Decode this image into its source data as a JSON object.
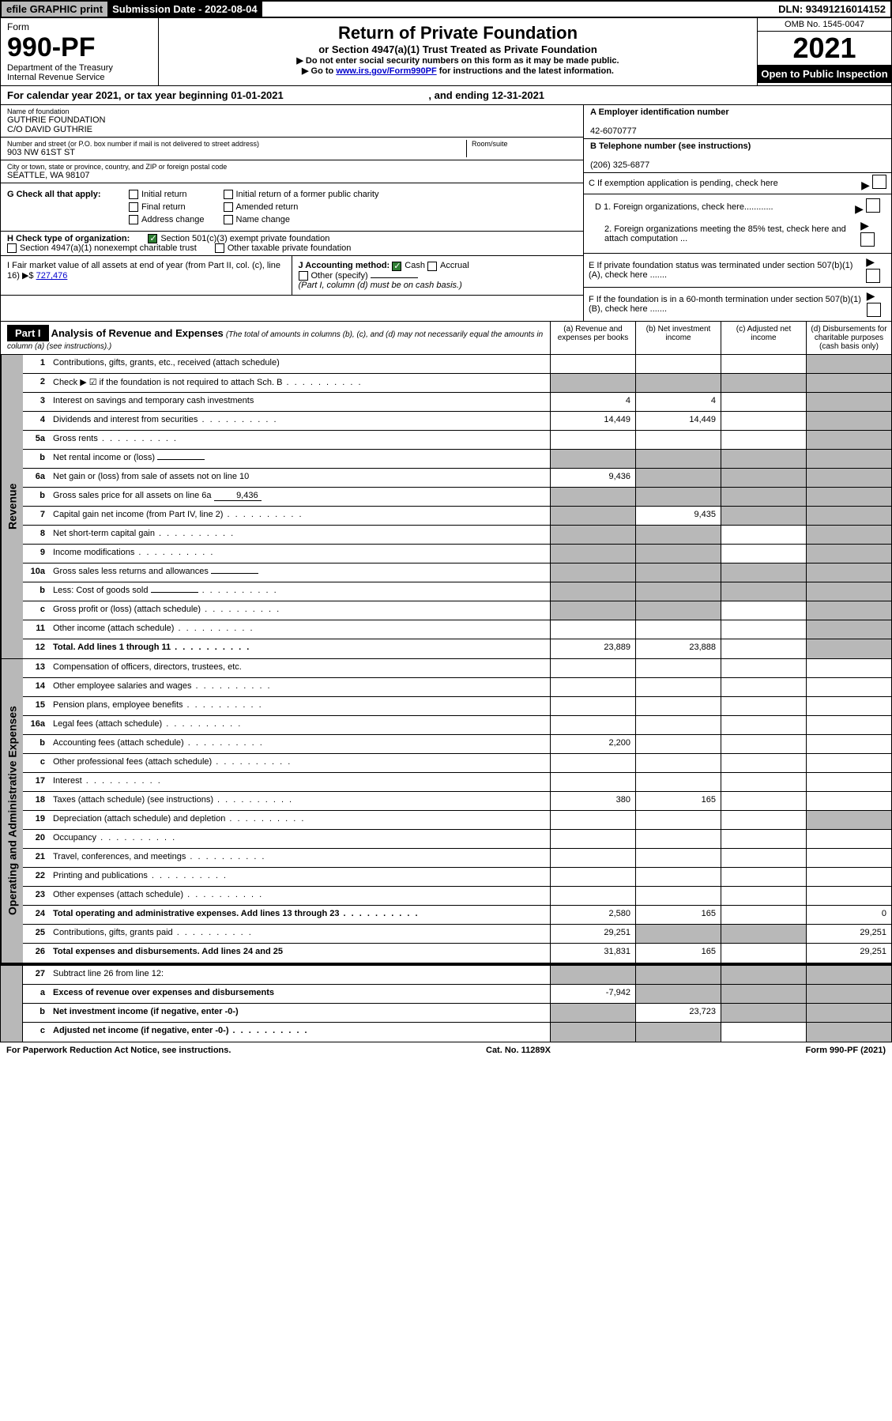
{
  "top": {
    "efile": "efile GRAPHIC print",
    "submission": "Submission Date - 2022-08-04",
    "dln": "DLN: 93491216014152"
  },
  "header": {
    "form": "Form",
    "form_no": "990-PF",
    "dept1": "Department of the Treasury",
    "dept2": "Internal Revenue Service",
    "title": "Return of Private Foundation",
    "subtitle": "or Section 4947(a)(1) Trust Treated as Private Foundation",
    "instr1": "▶ Do not enter social security numbers on this form as it may be made public.",
    "instr2_pre": "▶ Go to ",
    "instr2_link": "www.irs.gov/Form990PF",
    "instr2_post": " for instructions and the latest information.",
    "omb": "OMB No. 1545-0047",
    "year": "2021",
    "open": "Open to Public Inspection"
  },
  "cal_year": {
    "pre": "For calendar year 2021, or tax year beginning ",
    "begin": "01-01-2021",
    "mid": " , and ending ",
    "end": "12-31-2021"
  },
  "foundation": {
    "name_label": "Name of foundation",
    "name1": "GUTHRIE FOUNDATION",
    "name2": "C/O DAVID GUTHRIE",
    "addr_label": "Number and street (or P.O. box number if mail is not delivered to street address)",
    "addr": "903 NW 61ST ST",
    "room_label": "Room/suite",
    "city_label": "City or town, state or province, country, and ZIP or foreign postal code",
    "city": "SEATTLE, WA  98107"
  },
  "right_info": {
    "a_label": "A Employer identification number",
    "a_val": "42-6070777",
    "b_label": "B Telephone number (see instructions)",
    "b_val": "(206) 325-6877",
    "c_label": "C If exemption application is pending, check here",
    "d1": "D 1. Foreign organizations, check here............",
    "d2": "2. Foreign organizations meeting the 85% test, check here and attach computation ...",
    "e": "E  If private foundation status was terminated under section 507(b)(1)(A), check here .......",
    "f": "F  If the foundation is in a 60-month termination under section 507(b)(1)(B), check here ......."
  },
  "g_checks": {
    "label": "G Check all that apply:",
    "c1": "Initial return",
    "c2": "Initial return of a former public charity",
    "c3": "Final return",
    "c4": "Amended return",
    "c5": "Address change",
    "c6": "Name change"
  },
  "h_checks": {
    "label": "H Check type of organization:",
    "c1": "Section 501(c)(3) exempt private foundation",
    "c2": "Section 4947(a)(1) nonexempt charitable trust",
    "c3": "Other taxable private foundation"
  },
  "i_block": {
    "label": "I Fair market value of all assets at end of year (from Part II, col. (c), line 16) ▶$ ",
    "val": "727,476"
  },
  "j_block": {
    "label": "J Accounting method:",
    "cash": "Cash",
    "accrual": "Accrual",
    "other": "Other (specify)",
    "note": "(Part I, column (d) must be on cash basis.)"
  },
  "part1": {
    "label": "Part I",
    "title": "Analysis of Revenue and Expenses",
    "sub": " (The total of amounts in columns (b), (c), and (d) may not necessarily equal the amounts in column (a) (see instructions).)",
    "col_a": "(a)  Revenue and expenses per books",
    "col_b": "(b)  Net investment income",
    "col_c": "(c)  Adjusted net income",
    "col_d": "(d)  Disbursements for charitable purposes (cash basis only)"
  },
  "side_labels": {
    "revenue": "Revenue",
    "expenses": "Operating and Administrative Expenses"
  },
  "rows": [
    {
      "n": "1",
      "label": "Contributions, gifts, grants, etc., received (attach schedule)",
      "a": "",
      "b": "",
      "c": "",
      "d": "",
      "grey_c": false,
      "grey_d": true
    },
    {
      "n": "2",
      "label": "Check ▶ ☑ if the foundation is not required to attach Sch. B",
      "a": "",
      "b": "",
      "c": "",
      "d": "",
      "grey_a": true,
      "grey_b": true,
      "grey_c": true,
      "grey_d": true,
      "dots": true
    },
    {
      "n": "3",
      "label": "Interest on savings and temporary cash investments",
      "a": "4",
      "b": "4",
      "c": "",
      "d": "",
      "grey_d": true
    },
    {
      "n": "4",
      "label": "Dividends and interest from securities",
      "a": "14,449",
      "b": "14,449",
      "c": "",
      "d": "",
      "grey_d": true,
      "dots": true
    },
    {
      "n": "5a",
      "label": "Gross rents",
      "a": "",
      "b": "",
      "c": "",
      "d": "",
      "grey_d": true,
      "dots": true
    },
    {
      "n": "b",
      "label": "Net rental income or (loss)",
      "a": "",
      "b": "",
      "c": "",
      "d": "",
      "grey_a": true,
      "grey_b": true,
      "grey_c": true,
      "grey_d": true,
      "inline": true
    },
    {
      "n": "6a",
      "label": "Net gain or (loss) from sale of assets not on line 10",
      "a": "9,436",
      "b": "",
      "c": "",
      "d": "",
      "grey_b": true,
      "grey_c": true,
      "grey_d": true
    },
    {
      "n": "b",
      "label": "Gross sales price for all assets on line 6a",
      "a": "",
      "b": "",
      "c": "",
      "d": "",
      "grey_a": true,
      "grey_b": true,
      "grey_c": true,
      "grey_d": true,
      "inline": true,
      "inline_val": "9,436"
    },
    {
      "n": "7",
      "label": "Capital gain net income (from Part IV, line 2)",
      "a": "",
      "b": "9,435",
      "c": "",
      "d": "",
      "grey_a": true,
      "grey_c": true,
      "grey_d": true,
      "dots": true
    },
    {
      "n": "8",
      "label": "Net short-term capital gain",
      "a": "",
      "b": "",
      "c": "",
      "d": "",
      "grey_a": true,
      "grey_b": true,
      "grey_d": true,
      "dots": true
    },
    {
      "n": "9",
      "label": "Income modifications",
      "a": "",
      "b": "",
      "c": "",
      "d": "",
      "grey_a": true,
      "grey_b": true,
      "grey_d": true,
      "dots": true
    },
    {
      "n": "10a",
      "label": "Gross sales less returns and allowances",
      "a": "",
      "b": "",
      "c": "",
      "d": "",
      "grey_a": true,
      "grey_b": true,
      "grey_c": true,
      "grey_d": true,
      "inline": true
    },
    {
      "n": "b",
      "label": "Less: Cost of goods sold",
      "a": "",
      "b": "",
      "c": "",
      "d": "",
      "grey_a": true,
      "grey_b": true,
      "grey_c": true,
      "grey_d": true,
      "inline": true,
      "dots": true
    },
    {
      "n": "c",
      "label": "Gross profit or (loss) (attach schedule)",
      "a": "",
      "b": "",
      "c": "",
      "d": "",
      "grey_a": true,
      "grey_b": true,
      "grey_d": true,
      "dots": true
    },
    {
      "n": "11",
      "label": "Other income (attach schedule)",
      "a": "",
      "b": "",
      "c": "",
      "d": "",
      "grey_d": true,
      "dots": true
    },
    {
      "n": "12",
      "label": "Total. Add lines 1 through 11",
      "a": "23,889",
      "b": "23,888",
      "c": "",
      "d": "",
      "grey_d": true,
      "bold": true,
      "dots": true
    }
  ],
  "exp_rows": [
    {
      "n": "13",
      "label": "Compensation of officers, directors, trustees, etc.",
      "a": "",
      "b": "",
      "c": "",
      "d": ""
    },
    {
      "n": "14",
      "label": "Other employee salaries and wages",
      "a": "",
      "b": "",
      "c": "",
      "d": "",
      "dots": true
    },
    {
      "n": "15",
      "label": "Pension plans, employee benefits",
      "a": "",
      "b": "",
      "c": "",
      "d": "",
      "dots": true
    },
    {
      "n": "16a",
      "label": "Legal fees (attach schedule)",
      "a": "",
      "b": "",
      "c": "",
      "d": "",
      "dots": true
    },
    {
      "n": "b",
      "label": "Accounting fees (attach schedule)",
      "a": "2,200",
      "b": "",
      "c": "",
      "d": "",
      "dots": true
    },
    {
      "n": "c",
      "label": "Other professional fees (attach schedule)",
      "a": "",
      "b": "",
      "c": "",
      "d": "",
      "dots": true
    },
    {
      "n": "17",
      "label": "Interest",
      "a": "",
      "b": "",
      "c": "",
      "d": "",
      "dots": true
    },
    {
      "n": "18",
      "label": "Taxes (attach schedule) (see instructions)",
      "a": "380",
      "b": "165",
      "c": "",
      "d": "",
      "dots": true
    },
    {
      "n": "19",
      "label": "Depreciation (attach schedule) and depletion",
      "a": "",
      "b": "",
      "c": "",
      "d": "",
      "grey_d": true,
      "dots": true
    },
    {
      "n": "20",
      "label": "Occupancy",
      "a": "",
      "b": "",
      "c": "",
      "d": "",
      "dots": true
    },
    {
      "n": "21",
      "label": "Travel, conferences, and meetings",
      "a": "",
      "b": "",
      "c": "",
      "d": "",
      "dots": true
    },
    {
      "n": "22",
      "label": "Printing and publications",
      "a": "",
      "b": "",
      "c": "",
      "d": "",
      "dots": true
    },
    {
      "n": "23",
      "label": "Other expenses (attach schedule)",
      "a": "",
      "b": "",
      "c": "",
      "d": "",
      "dots": true
    },
    {
      "n": "24",
      "label": "Total operating and administrative expenses. Add lines 13 through 23",
      "a": "2,580",
      "b": "165",
      "c": "",
      "d": "0",
      "bold": true,
      "dots": true
    },
    {
      "n": "25",
      "label": "Contributions, gifts, grants paid",
      "a": "29,251",
      "b": "",
      "c": "",
      "d": "29,251",
      "grey_b": true,
      "grey_c": true,
      "dots": true
    },
    {
      "n": "26",
      "label": "Total expenses and disbursements. Add lines 24 and 25",
      "a": "31,831",
      "b": "165",
      "c": "",
      "d": "29,251",
      "bold": true
    }
  ],
  "final_rows": [
    {
      "n": "27",
      "label": "Subtract line 26 from line 12:",
      "a": "",
      "b": "",
      "c": "",
      "d": "",
      "grey_a": true,
      "grey_b": true,
      "grey_c": true,
      "grey_d": true
    },
    {
      "n": "a",
      "label": "Excess of revenue over expenses and disbursements",
      "a": "-7,942",
      "b": "",
      "c": "",
      "d": "",
      "grey_b": true,
      "grey_c": true,
      "grey_d": true,
      "bold": true
    },
    {
      "n": "b",
      "label": "Net investment income (if negative, enter -0-)",
      "a": "",
      "b": "23,723",
      "c": "",
      "d": "",
      "grey_a": true,
      "grey_c": true,
      "grey_d": true,
      "bold": true
    },
    {
      "n": "c",
      "label": "Adjusted net income (if negative, enter -0-)",
      "a": "",
      "b": "",
      "c": "",
      "d": "",
      "grey_a": true,
      "grey_b": true,
      "grey_d": true,
      "bold": true,
      "dots": true
    }
  ],
  "footer": {
    "left": "For Paperwork Reduction Act Notice, see instructions.",
    "mid": "Cat. No. 11289X",
    "right": "Form 990-PF (2021)"
  }
}
